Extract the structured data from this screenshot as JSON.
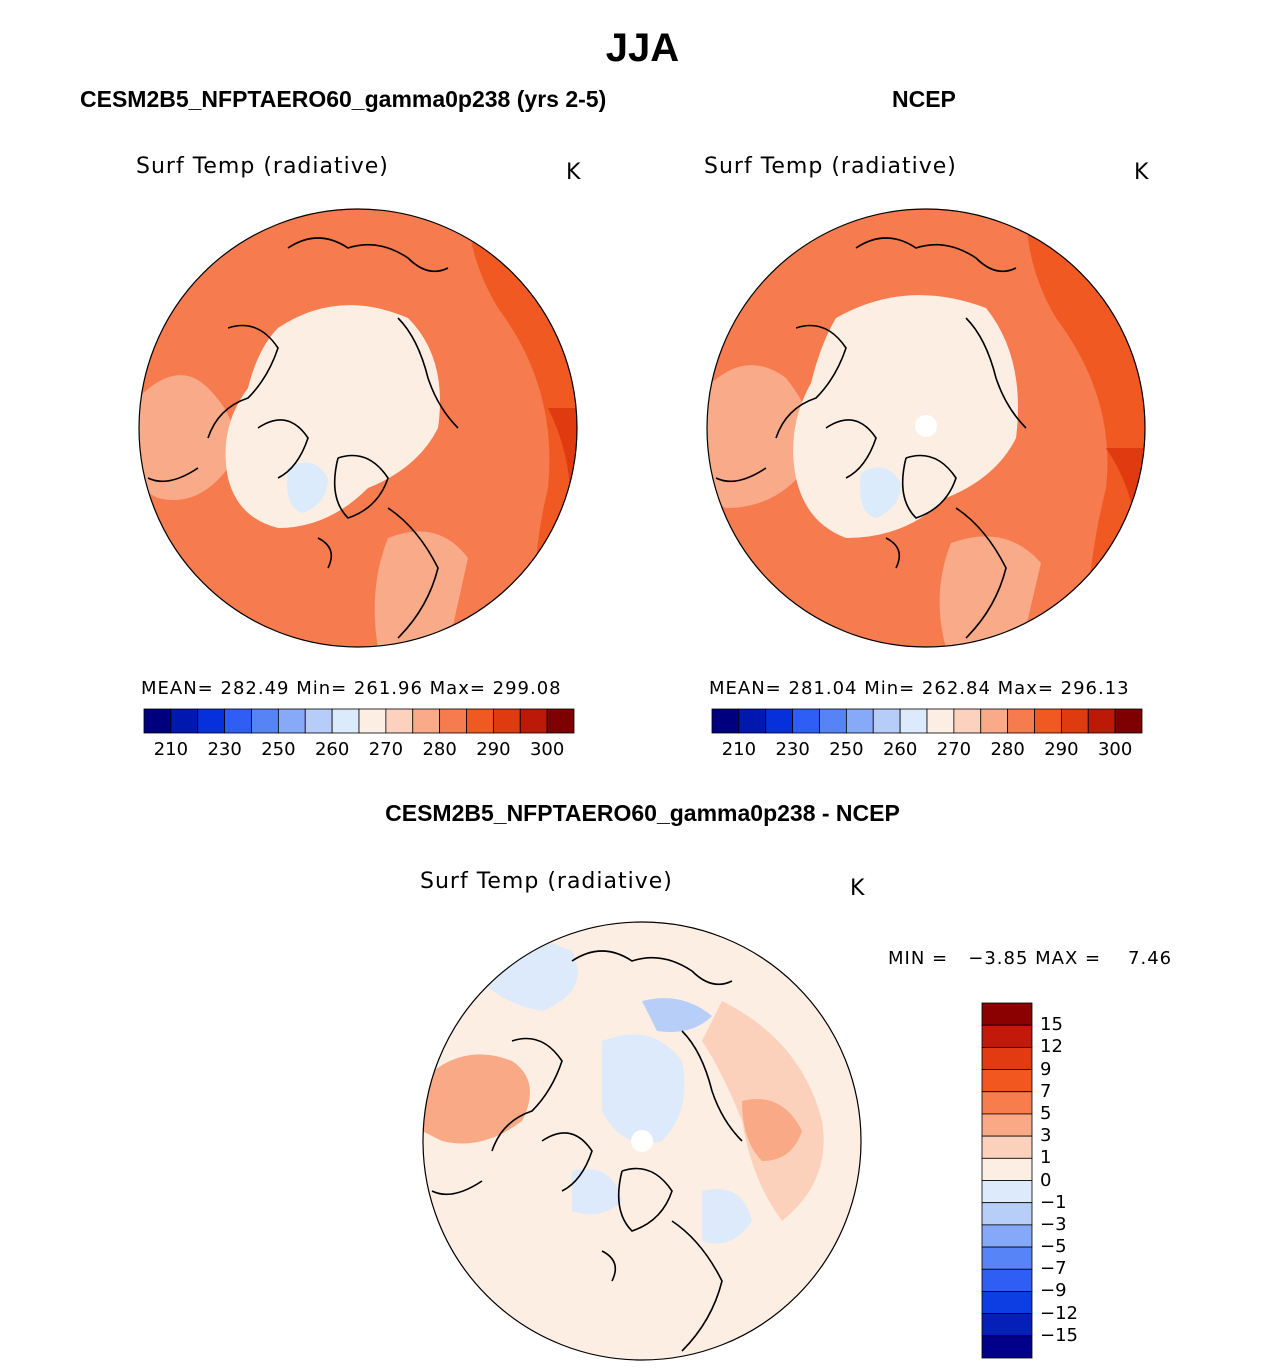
{
  "title": "JJA",
  "colors": {
    "abs": [
      "#00007f",
      "#0018b0",
      "#0630dc",
      "#2f5ef5",
      "#5684f7",
      "#86a9f8",
      "#b6cdf9",
      "#dcebfb",
      "#fdeee4",
      "#fcd1bd",
      "#f9aa88",
      "#f67b4f",
      "#f05a22",
      "#e03a10",
      "#bb1a08",
      "#7f0000"
    ],
    "diff": [
      "#8b0000",
      "#c2190b",
      "#e23b11",
      "#f2571f",
      "#f77d4d",
      "#f9a985",
      "#fcd1bc",
      "#fdeee4",
      "#ddeafb",
      "#b7cef9",
      "#86a8f8",
      "#5784f7",
      "#2f5ef5",
      "#0d3ee3",
      "#0520b8",
      "#00008b"
    ],
    "coastline": "#000000"
  },
  "panels": [
    {
      "case": "CESM2B5_NFPTAERO60_gamma0p238 (yrs 2-5)",
      "var": "Surf Temp (radiative)",
      "unit": "K",
      "stats": "MEAN= 282.49   Min= 261.96   Max= 299.08",
      "ticks": [
        "210",
        "230",
        "250",
        "260",
        "270",
        "280",
        "290",
        "300"
      ],
      "missing_pole": false
    },
    {
      "case": "NCEP",
      "var": "Surf Temp (radiative)",
      "unit": "K",
      "stats": "MEAN= 281.04   Min= 262.84   Max= 296.13",
      "ticks": [
        "210",
        "230",
        "250",
        "260",
        "270",
        "280",
        "290",
        "300"
      ],
      "missing_pole": true
    }
  ],
  "diff": {
    "case": "CESM2B5_NFPTAERO60_gamma0p238 - NCEP",
    "var": "Surf Temp (radiative)",
    "unit": "K",
    "stats": "MIN =   −3.85 MAX =    7.46",
    "ticks": [
      "15",
      "12",
      "9",
      "7",
      "5",
      "3",
      "1",
      "0",
      "−1",
      "−3",
      "−5",
      "−7",
      "−9",
      "−12",
      "−15"
    ]
  }
}
